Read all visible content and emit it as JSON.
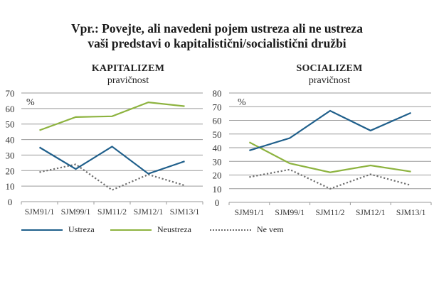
{
  "title_lines": [
    "Vpr.: Povejte, ali navedeni pojem ustreza ali ne ustreza",
    "vaši predstavi o kapitalistični/socialistični družbi"
  ],
  "legend": [
    {
      "name": "Ustreza",
      "color": "#1f5f8b",
      "style": "solid"
    },
    {
      "name": "Neustreza",
      "color": "#8db33f",
      "style": "solid"
    },
    {
      "name": "Ne vem",
      "color": "#6e6e6e",
      "style": "dotted"
    }
  ],
  "chart_data": [
    {
      "type": "line",
      "title": "KAPITALIZEM",
      "subtitle": "pravičnost",
      "unit_label": "%",
      "categories": [
        "SJM91/1",
        "SJM99/1",
        "SJM11/2",
        "SJM12/1",
        "SJM13/1"
      ],
      "ylim": [
        0,
        70
      ],
      "yticks": [
        0,
        10,
        20,
        30,
        40,
        50,
        60,
        70
      ],
      "grid": true,
      "legend": "bottom",
      "series": [
        {
          "name": "Ustreza",
          "values": [
            35,
            21,
            35.5,
            18,
            26
          ]
        },
        {
          "name": "Neustreza",
          "values": [
            46,
            54.5,
            55,
            64,
            61.5
          ]
        },
        {
          "name": "Ne vem",
          "values": [
            19,
            24,
            7.5,
            17.5,
            10.5
          ]
        }
      ]
    },
    {
      "type": "line",
      "title": "SOCIALIZEM",
      "subtitle": "pravičnost",
      "unit_label": "%",
      "categories": [
        "SJM91/1",
        "SJM99/1",
        "SJM11/2",
        "SJM12/1",
        "SJM13/1"
      ],
      "ylim": [
        0,
        80
      ],
      "yticks": [
        0,
        10,
        20,
        30,
        40,
        50,
        60,
        70,
        80
      ],
      "grid": true,
      "legend": "bottom",
      "series": [
        {
          "name": "Ustreza",
          "values": [
            38,
            47,
            67,
            52.5,
            65.5
          ]
        },
        {
          "name": "Neustreza",
          "values": [
            44,
            28.5,
            22,
            27,
            22.5
          ]
        },
        {
          "name": "Ne vem",
          "values": [
            18.5,
            24,
            10,
            20.5,
            12.5
          ]
        }
      ]
    }
  ]
}
